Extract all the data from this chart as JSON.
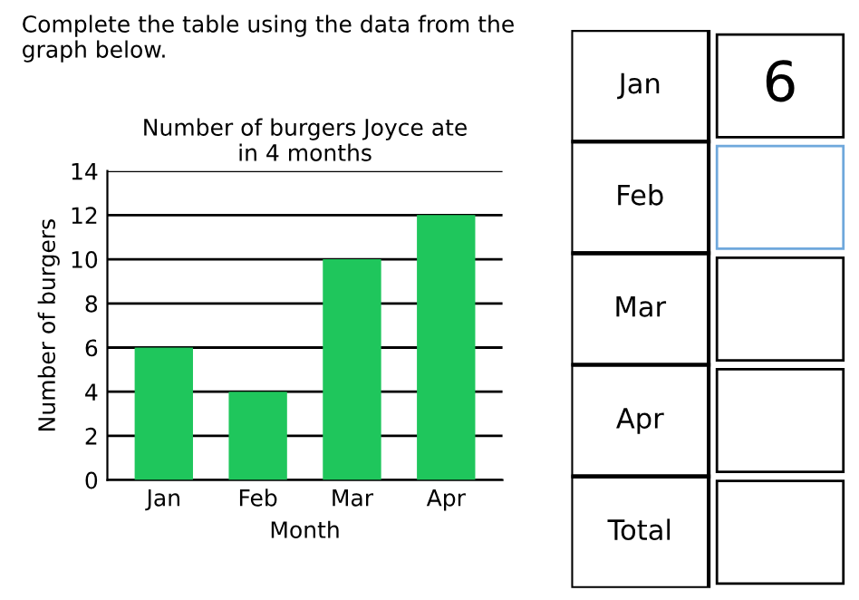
{
  "chart_data": [
    {
      "type": "bar",
      "title": "Number of burgers Joyce ate\nin 4 months",
      "xlabel": "Month",
      "ylabel": "Number of burgers",
      "annotations": [
        "Complete the table using the data from the\ngraph below."
      ],
      "categories": [
        "Jan",
        "Feb",
        "Mar",
        "Apr"
      ],
      "values": [
        6,
        4,
        10,
        12
      ],
      "color": "#1fc65c",
      "ylim": [
        0,
        14
      ],
      "yticks": [
        0,
        2,
        4,
        6,
        8,
        10,
        12,
        14
      ],
      "grid": "y"
    },
    {
      "type": "other",
      "categories": [
        "Jan",
        "Feb",
        "Mar",
        "Apr",
        "Total"
      ],
      "cell_labels": [
        "6",
        null,
        null,
        null,
        null
      ]
    }
  ]
}
